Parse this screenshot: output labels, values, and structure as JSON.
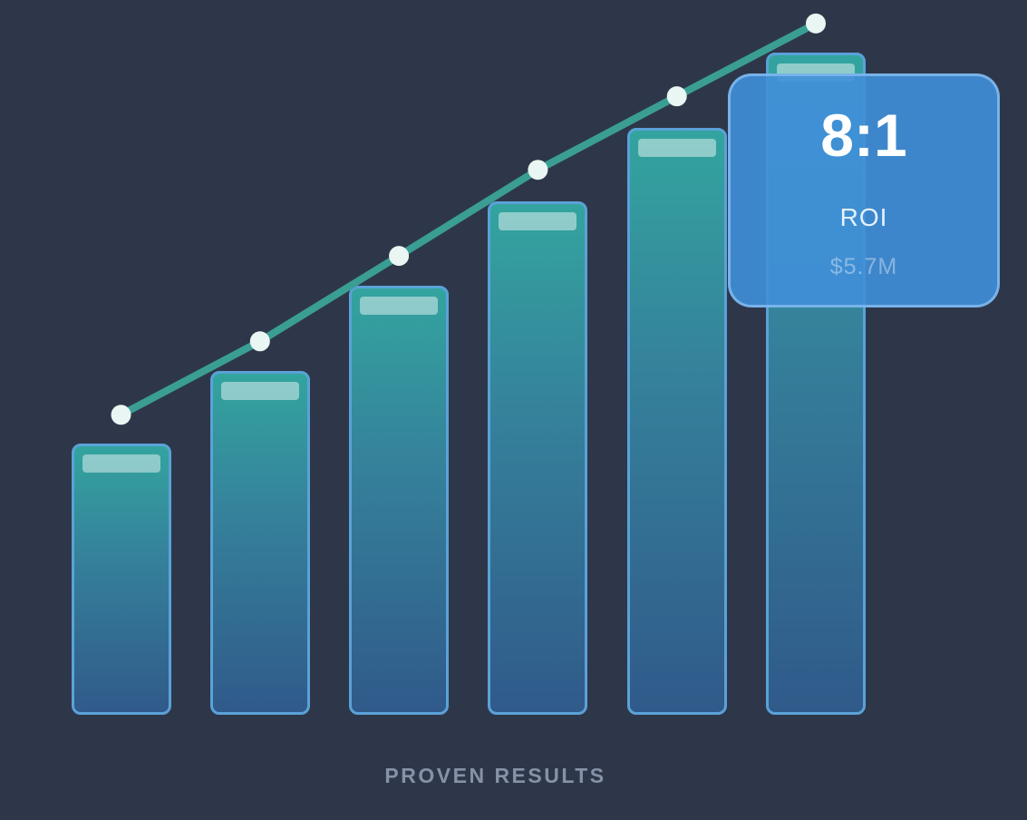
{
  "caption": "PROVEN RESULTS",
  "card": {
    "ratio": "8:1",
    "label": "ROI",
    "amount": "$5.7M"
  },
  "colors": {
    "background": "#2e3749",
    "bar_border": "#5aa2d8",
    "bar_gradient_top": "#33a49f",
    "bar_gradient_mid": "#35819b",
    "bar_gradient_bottom": "#305a8a",
    "bar_cap": "rgba(255,255,255,0.45)",
    "trend_line": "#3a9e94",
    "trend_dot": "#eaf6f3",
    "card_fill": "rgba(64,143,217,0.90)",
    "card_border": "rgba(123,180,235,0.95)",
    "ratio_text": "#ffffff",
    "roi_text": "#e4f1fc",
    "amount_text": "rgba(255,255,255,0.38)",
    "caption_text": "#8592a8"
  },
  "chart_data": {
    "type": "bar",
    "title": "",
    "xlabel": "",
    "ylabel": "",
    "categories": [
      "",
      "",
      "",
      "",
      "",
      ""
    ],
    "values": [
      41,
      51.9,
      64.8,
      77.5,
      88.6,
      100
    ],
    "series": [
      {
        "name": "bars",
        "type": "bar",
        "values": [
          41,
          51.9,
          64.8,
          77.5,
          88.6,
          100
        ]
      },
      {
        "name": "trend",
        "type": "line",
        "values": [
          45.3,
          56.4,
          69.3,
          82.3,
          93.4,
          104.4
        ]
      }
    ],
    "ylim": [
      0,
      110
    ],
    "grid": false,
    "legend": false,
    "axes_visible": false,
    "units": "relative (no axis labels shown in image)",
    "annotation": {
      "ratio": "8:1",
      "label": "ROI",
      "amount": "$5.7M"
    },
    "caption": "PROVEN RESULTS"
  }
}
